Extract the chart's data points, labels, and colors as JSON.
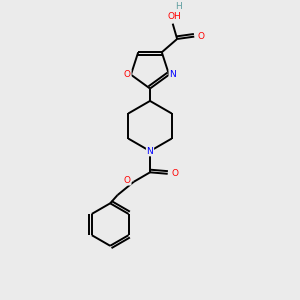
{
  "background_color": "#ebebeb",
  "bond_color": "#000000",
  "atom_colors": {
    "O": "#ff0000",
    "N": "#0000ff",
    "C": "#000000",
    "H": "#5f9ea0"
  },
  "figsize": [
    3.0,
    3.0
  ],
  "dpi": 100
}
